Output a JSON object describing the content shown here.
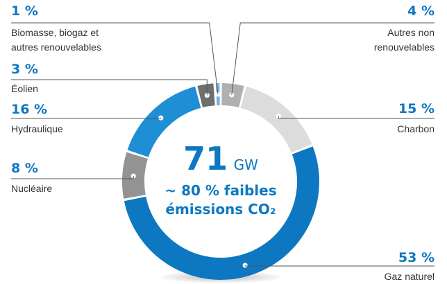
{
  "chart_data": {
    "type": "pie",
    "center": {
      "value": "71",
      "unit": "GW",
      "line1": "~ 80 % faibles",
      "line2": "émissions CO₂"
    },
    "slices": [
      {
        "key": "autres",
        "value": 4,
        "value_label": "4 %",
        "label_lines": [
          "Autres non",
          "renouvelables"
        ],
        "color": "#b0b0b0"
      },
      {
        "key": "charbon",
        "value": 15,
        "value_label": "15 %",
        "label_lines": [
          "Charbon"
        ],
        "color": "#dcdcdc"
      },
      {
        "key": "gaz",
        "value": 53,
        "value_label": "53 %",
        "label_lines": [
          "Gaz naturel"
        ],
        "color": "#0d78c1"
      },
      {
        "key": "nucleaire",
        "value": 8,
        "value_label": "8 %",
        "label_lines": [
          "Nucléaire"
        ],
        "color": "#939393"
      },
      {
        "key": "hydraulique",
        "value": 16,
        "value_label": "16 %",
        "label_lines": [
          "Hydraulique"
        ],
        "color": "#1e8fd5"
      },
      {
        "key": "eolien",
        "value": 3,
        "value_label": "3 %",
        "label_lines": [
          "Éolien"
        ],
        "color": "#6f6f6f"
      },
      {
        "key": "biomasse",
        "value": 1,
        "value_label": "1 %",
        "label_lines": [
          "Biomasse, biogaz et",
          "autres renouvelables"
        ],
        "color": "#6fb2e6"
      }
    ]
  }
}
